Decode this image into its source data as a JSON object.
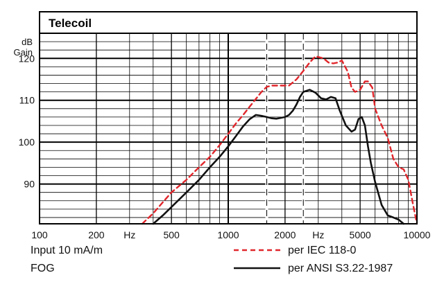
{
  "chart_data": {
    "type": "line",
    "title": "Telecoil",
    "ylabel_top": "dB",
    "ylabel": "Gain",
    "x_unit": "Hz",
    "x_scale": "log",
    "xlim": [
      100,
      10000
    ],
    "ylim": [
      80.5,
      126
    ],
    "grid": true,
    "x_ticks": [
      100,
      200,
      500,
      1000,
      2000,
      5000,
      10000
    ],
    "x_tick_labels": [
      "100",
      "200",
      "500",
      "1000",
      "2000",
      "5000",
      "10000"
    ],
    "x_unit_labels": [
      {
        "label": "Hz",
        "at": 300
      },
      {
        "label": "Hz",
        "at": 3000
      }
    ],
    "y_ticks": [
      90,
      100,
      110,
      120
    ],
    "y_tick_labels": [
      "90",
      "100",
      "110",
      "120"
    ],
    "dashed_verticals": [
      1600,
      2500
    ],
    "annotations": {
      "input": "Input 10 mA/m",
      "mode": "FOG"
    },
    "series": [
      {
        "name": "per IEC 118-0",
        "color": "#e0262b",
        "dash": true,
        "x": [
          350,
          400,
          500,
          600,
          700,
          800,
          900,
          1000,
          1100,
          1200,
          1300,
          1400,
          1500,
          1600,
          1700,
          1800,
          1900,
          2000,
          2100,
          2300,
          2500,
          2700,
          2900,
          3200,
          3400,
          3600,
          3800,
          4000,
          4300,
          4500,
          4700,
          5000,
          5300,
          5500,
          5800,
          6000,
          6500,
          7000,
          7500,
          8000,
          8500,
          9000,
          9500,
          10000
        ],
        "values": [
          80.5,
          83,
          88,
          91,
          94,
          96.5,
          99.3,
          102,
          104.5,
          106.5,
          108.5,
          110.3,
          112,
          113.2,
          113.5,
          113.5,
          113.5,
          113.5,
          113.5,
          115,
          117,
          119,
          120.5,
          120,
          119,
          118.8,
          119,
          119.5,
          116.8,
          113,
          112,
          112.5,
          114.5,
          114.5,
          113,
          108,
          104,
          101,
          96,
          94,
          93.5,
          91,
          85.5,
          80.5
        ]
      },
      {
        "name": "per ANSI S3.22-1987",
        "color": "#111111",
        "dash": false,
        "x": [
          400,
          450,
          500,
          600,
          700,
          800,
          900,
          1000,
          1100,
          1200,
          1300,
          1400,
          1500,
          1600,
          1700,
          1800,
          1900,
          2000,
          2100,
          2200,
          2300,
          2400,
          2500,
          2700,
          2900,
          3100,
          3300,
          3500,
          3700,
          3900,
          4200,
          4500,
          4700,
          4900,
          5100,
          5300,
          5500,
          5700,
          6000,
          6500,
          7000,
          7500,
          8000,
          8500
        ],
        "values": [
          80.5,
          82.5,
          84.5,
          88,
          91,
          94,
          96.5,
          99,
          101.5,
          103.8,
          105.5,
          106.5,
          106.3,
          106,
          105.7,
          105.6,
          105.8,
          106,
          106.5,
          107.5,
          109,
          110.8,
          112,
          112.5,
          111.8,
          110.5,
          110.2,
          110.8,
          110.5,
          107.5,
          104,
          102.5,
          103,
          105.5,
          106,
          104,
          99,
          95,
          90.5,
          85,
          82.5,
          82,
          81.5,
          80.5
        ]
      }
    ]
  }
}
